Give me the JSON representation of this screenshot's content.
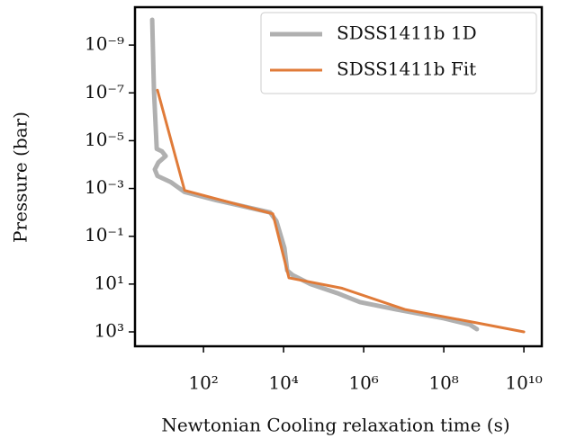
{
  "chart_data": {
    "type": "line",
    "xlabel": "Newtonian Cooling relaxation time (s)",
    "ylabel": "Pressure (bar)",
    "xscale": "log",
    "yscale": "log",
    "xlim": [
      1.95,
      28000000000.0
    ],
    "ylim": [
      4000,
      2.6e-11
    ],
    "xticks": [
      {
        "value": 100,
        "label": "10²"
      },
      {
        "value": 10000,
        "label": "10⁴"
      },
      {
        "value": 1000000,
        "label": "10⁶"
      },
      {
        "value": 100000000,
        "label": "10⁸"
      },
      {
        "value": 10000000000,
        "label": "10¹⁰"
      }
    ],
    "yticks": [
      {
        "value": 1e-09,
        "label": "10⁻⁹"
      },
      {
        "value": 1e-07,
        "label": "10⁻⁷"
      },
      {
        "value": 1e-05,
        "label": "10⁻⁵"
      },
      {
        "value": 0.001,
        "label": "10⁻³"
      },
      {
        "value": 0.1,
        "label": "10⁻¹"
      },
      {
        "value": 10,
        "label": "10¹"
      },
      {
        "value": 1000,
        "label": "10³"
      }
    ],
    "legend": "upper right",
    "series": [
      {
        "name": "SDSS1411b 1D",
        "color": "#b0b0b0",
        "x": [
          5.24,
          5.8,
          6.8,
          9.2,
          11.4,
          7.5,
          6.1,
          7.1,
          15.5,
          33.7,
          207,
          4600,
          6600,
          8600,
          10500,
          12300,
          16800,
          47200,
          220000,
          810000,
          6500000,
          100000000,
          450000000,
          670000000
        ],
        "values": [
          8.7e-11,
          7.7e-08,
          2.2e-05,
          2.8e-05,
          4.4e-05,
          8.1e-05,
          0.00016,
          0.0003,
          0.00055,
          0.0014,
          0.0031,
          0.01,
          0.023,
          0.1,
          0.31,
          2.7,
          4.2,
          10,
          24,
          57,
          115,
          270,
          500,
          770
        ]
      },
      {
        "name": "SDSS1411b Fit",
        "color": "#e07b39",
        "x": [
          7.1,
          33.7,
          5400,
          13600,
          290000,
          10700000,
          670000000,
          10000000000
        ],
        "values": [
          7.7e-08,
          0.0012,
          0.0115,
          5.5,
          15,
          115,
          420,
          1000
        ]
      }
    ]
  }
}
